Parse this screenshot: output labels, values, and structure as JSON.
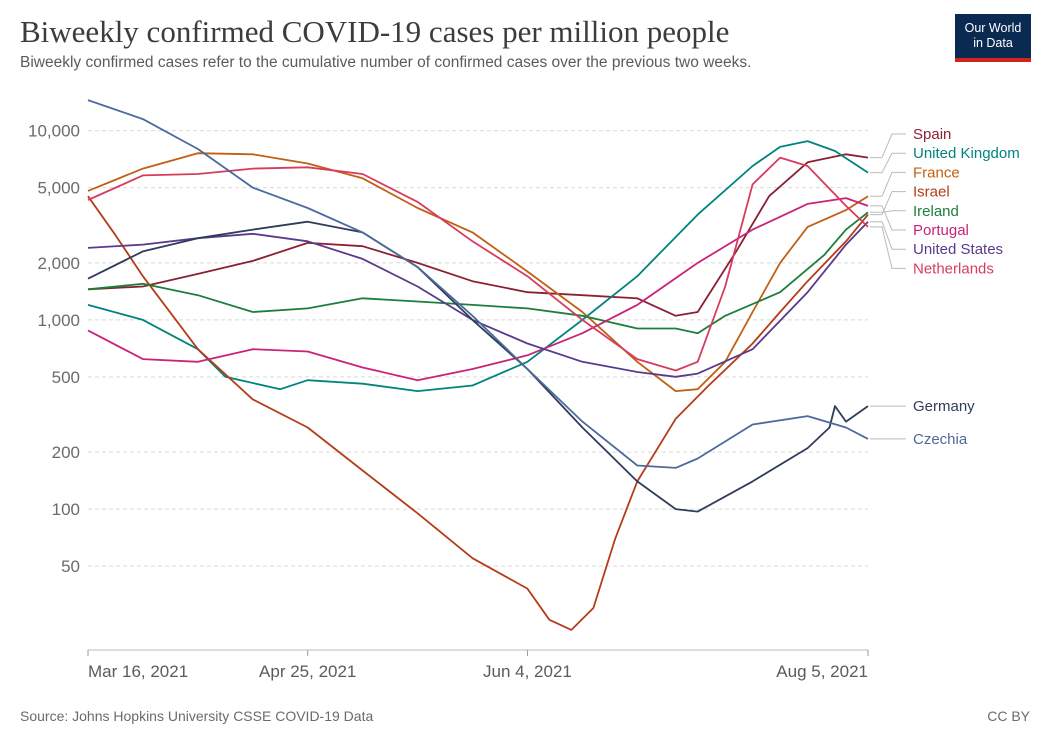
{
  "header": {
    "title": "Biweekly confirmed COVID-19 cases per million people",
    "subtitle": "Biweekly confirmed cases refer to the cumulative number of confirmed cases over the previous two weeks.",
    "logo_line1": "Our World",
    "logo_line2": "in Data"
  },
  "footer": {
    "source": "Source: Johns Hopkins University CSSE COVID-19 Data",
    "license": "CC BY"
  },
  "chart_data": {
    "type": "line",
    "title": "Biweekly confirmed COVID-19 cases per million people",
    "yscale": "log",
    "ylim": [
      18,
      16000
    ],
    "xlim": [
      "2021-03-16",
      "2021-08-05"
    ],
    "yticks": [
      50,
      100,
      200,
      500,
      1000,
      2000,
      5000,
      10000
    ],
    "ytick_labels": [
      "50",
      "100",
      "200",
      "500",
      "1,000",
      "2,000",
      "5,000",
      "10,000"
    ],
    "xticks": [
      "2021-03-16",
      "2021-04-25",
      "2021-06-04",
      "2021-08-05"
    ],
    "xtick_labels": [
      "Mar 16, 2021",
      "Apr 25, 2021",
      "Jun 4, 2021",
      "Aug 5, 2021"
    ],
    "grid": "horizontal dashed",
    "legend": "right, labels at line ends",
    "series": [
      {
        "name": "Spain",
        "color": "#8c2033",
        "points": [
          [
            "2021-03-16",
            1450
          ],
          [
            "2021-03-26",
            1500
          ],
          [
            "2021-04-05",
            1750
          ],
          [
            "2021-04-15",
            2050
          ],
          [
            "2021-04-25",
            2550
          ],
          [
            "2021-05-05",
            2450
          ],
          [
            "2021-05-15",
            2000
          ],
          [
            "2021-05-25",
            1600
          ],
          [
            "2021-06-04",
            1400
          ],
          [
            "2021-06-14",
            1350
          ],
          [
            "2021-06-24",
            1300
          ],
          [
            "2021-07-01",
            1050
          ],
          [
            "2021-07-05",
            1100
          ],
          [
            "2021-07-12",
            2300
          ],
          [
            "2021-07-18",
            4500
          ],
          [
            "2021-07-25",
            6800
          ],
          [
            "2021-08-01",
            7500
          ],
          [
            "2021-08-05",
            7200
          ]
        ]
      },
      {
        "name": "United Kingdom",
        "color": "#00847e",
        "points": [
          [
            "2021-03-16",
            1200
          ],
          [
            "2021-03-26",
            1000
          ],
          [
            "2021-04-05",
            700
          ],
          [
            "2021-04-10",
            500
          ],
          [
            "2021-04-20",
            430
          ],
          [
            "2021-04-25",
            480
          ],
          [
            "2021-05-05",
            460
          ],
          [
            "2021-05-15",
            420
          ],
          [
            "2021-05-25",
            450
          ],
          [
            "2021-06-04",
            600
          ],
          [
            "2021-06-14",
            1000
          ],
          [
            "2021-06-24",
            1700
          ],
          [
            "2021-07-05",
            3600
          ],
          [
            "2021-07-15",
            6500
          ],
          [
            "2021-07-20",
            8200
          ],
          [
            "2021-07-25",
            8800
          ],
          [
            "2021-07-30",
            7800
          ],
          [
            "2021-08-05",
            6000
          ]
        ]
      },
      {
        "name": "France",
        "color": "#c15f13",
        "points": [
          [
            "2021-03-16",
            4800
          ],
          [
            "2021-03-26",
            6300
          ],
          [
            "2021-04-05",
            7600
          ],
          [
            "2021-04-15",
            7500
          ],
          [
            "2021-04-25",
            6700
          ],
          [
            "2021-05-05",
            5600
          ],
          [
            "2021-05-15",
            3900
          ],
          [
            "2021-05-25",
            2900
          ],
          [
            "2021-06-04",
            1800
          ],
          [
            "2021-06-14",
            1100
          ],
          [
            "2021-06-24",
            600
          ],
          [
            "2021-07-01",
            420
          ],
          [
            "2021-07-05",
            430
          ],
          [
            "2021-07-10",
            600
          ],
          [
            "2021-07-15",
            1100
          ],
          [
            "2021-07-20",
            2000
          ],
          [
            "2021-07-25",
            3100
          ],
          [
            "2021-08-01",
            3800
          ],
          [
            "2021-08-05",
            4500
          ]
        ]
      },
      {
        "name": "Israel",
        "color": "#b53c19",
        "points": [
          [
            "2021-03-16",
            4500
          ],
          [
            "2021-03-21",
            2800
          ],
          [
            "2021-03-26",
            1700
          ],
          [
            "2021-04-05",
            700
          ],
          [
            "2021-04-15",
            380
          ],
          [
            "2021-04-25",
            270
          ],
          [
            "2021-05-05",
            160
          ],
          [
            "2021-05-15",
            95
          ],
          [
            "2021-05-25",
            55
          ],
          [
            "2021-06-04",
            38
          ],
          [
            "2021-06-08",
            26
          ],
          [
            "2021-06-12",
            23
          ],
          [
            "2021-06-16",
            30
          ],
          [
            "2021-06-20",
            70
          ],
          [
            "2021-06-24",
            140
          ],
          [
            "2021-07-01",
            300
          ],
          [
            "2021-07-07",
            450
          ],
          [
            "2021-07-15",
            750
          ],
          [
            "2021-07-20",
            1100
          ],
          [
            "2021-07-25",
            1600
          ],
          [
            "2021-08-01",
            2600
          ],
          [
            "2021-08-05",
            3600
          ]
        ]
      },
      {
        "name": "Ireland",
        "color": "#1b7f3c",
        "points": [
          [
            "2021-03-16",
            1450
          ],
          [
            "2021-03-26",
            1550
          ],
          [
            "2021-04-05",
            1350
          ],
          [
            "2021-04-15",
            1100
          ],
          [
            "2021-04-25",
            1150
          ],
          [
            "2021-05-05",
            1300
          ],
          [
            "2021-05-15",
            1250
          ],
          [
            "2021-05-25",
            1200
          ],
          [
            "2021-06-04",
            1150
          ],
          [
            "2021-06-14",
            1050
          ],
          [
            "2021-06-24",
            900
          ],
          [
            "2021-07-01",
            900
          ],
          [
            "2021-07-05",
            850
          ],
          [
            "2021-07-10",
            1050
          ],
          [
            "2021-07-20",
            1400
          ],
          [
            "2021-07-28",
            2200
          ],
          [
            "2021-08-01",
            3000
          ],
          [
            "2021-08-05",
            3700
          ]
        ]
      },
      {
        "name": "Portugal",
        "color": "#c9237a",
        "points": [
          [
            "2021-03-16",
            880
          ],
          [
            "2021-03-26",
            620
          ],
          [
            "2021-04-05",
            600
          ],
          [
            "2021-04-15",
            700
          ],
          [
            "2021-04-25",
            680
          ],
          [
            "2021-05-05",
            560
          ],
          [
            "2021-05-15",
            480
          ],
          [
            "2021-05-25",
            550
          ],
          [
            "2021-06-04",
            650
          ],
          [
            "2021-06-14",
            850
          ],
          [
            "2021-06-24",
            1200
          ],
          [
            "2021-07-05",
            2000
          ],
          [
            "2021-07-15",
            3000
          ],
          [
            "2021-07-25",
            4100
          ],
          [
            "2021-08-01",
            4400
          ],
          [
            "2021-08-05",
            4000
          ]
        ]
      },
      {
        "name": "United States",
        "color": "#5b3a8c",
        "points": [
          [
            "2021-03-16",
            2400
          ],
          [
            "2021-03-26",
            2500
          ],
          [
            "2021-04-05",
            2700
          ],
          [
            "2021-04-15",
            2850
          ],
          [
            "2021-04-25",
            2600
          ],
          [
            "2021-05-05",
            2100
          ],
          [
            "2021-05-15",
            1500
          ],
          [
            "2021-05-25",
            1000
          ],
          [
            "2021-06-04",
            750
          ],
          [
            "2021-06-14",
            600
          ],
          [
            "2021-06-24",
            530
          ],
          [
            "2021-07-01",
            500
          ],
          [
            "2021-07-05",
            520
          ],
          [
            "2021-07-15",
            700
          ],
          [
            "2021-07-25",
            1400
          ],
          [
            "2021-08-01",
            2500
          ],
          [
            "2021-08-05",
            3300
          ]
        ]
      },
      {
        "name": "Netherlands",
        "color": "#d73c5e",
        "points": [
          [
            "2021-03-16",
            4300
          ],
          [
            "2021-03-26",
            5800
          ],
          [
            "2021-04-05",
            5900
          ],
          [
            "2021-04-15",
            6300
          ],
          [
            "2021-04-25",
            6400
          ],
          [
            "2021-05-05",
            5900
          ],
          [
            "2021-05-15",
            4200
          ],
          [
            "2021-05-25",
            2600
          ],
          [
            "2021-06-04",
            1700
          ],
          [
            "2021-06-14",
            1000
          ],
          [
            "2021-06-24",
            620
          ],
          [
            "2021-07-01",
            540
          ],
          [
            "2021-07-05",
            600
          ],
          [
            "2021-07-10",
            1500
          ],
          [
            "2021-07-15",
            5200
          ],
          [
            "2021-07-20",
            7200
          ],
          [
            "2021-07-25",
            6500
          ],
          [
            "2021-08-01",
            4000
          ],
          [
            "2021-08-05",
            3100
          ]
        ]
      },
      {
        "name": "Germany",
        "color": "#2f3c5a",
        "points": [
          [
            "2021-03-16",
            1650
          ],
          [
            "2021-03-26",
            2300
          ],
          [
            "2021-04-05",
            2700
          ],
          [
            "2021-04-15",
            3000
          ],
          [
            "2021-04-25",
            3300
          ],
          [
            "2021-05-05",
            2900
          ],
          [
            "2021-05-15",
            1900
          ],
          [
            "2021-05-25",
            1000
          ],
          [
            "2021-06-04",
            550
          ],
          [
            "2021-06-14",
            270
          ],
          [
            "2021-06-24",
            140
          ],
          [
            "2021-07-01",
            100
          ],
          [
            "2021-07-05",
            97
          ],
          [
            "2021-07-15",
            140
          ],
          [
            "2021-07-25",
            210
          ],
          [
            "2021-07-29",
            270
          ],
          [
            "2021-07-30",
            350
          ],
          [
            "2021-08-01",
            290
          ],
          [
            "2021-08-05",
            350
          ]
        ]
      },
      {
        "name": "Czechia",
        "color": "#4c6a9c",
        "points": [
          [
            "2021-03-16",
            14500
          ],
          [
            "2021-03-26",
            11500
          ],
          [
            "2021-04-05",
            8000
          ],
          [
            "2021-04-15",
            5000
          ],
          [
            "2021-04-25",
            3900
          ],
          [
            "2021-05-05",
            2900
          ],
          [
            "2021-05-15",
            1900
          ],
          [
            "2021-05-25",
            1050
          ],
          [
            "2021-06-04",
            550
          ],
          [
            "2021-06-14",
            290
          ],
          [
            "2021-06-24",
            170
          ],
          [
            "2021-07-01",
            165
          ],
          [
            "2021-07-05",
            185
          ],
          [
            "2021-07-15",
            280
          ],
          [
            "2021-07-25",
            310
          ],
          [
            "2021-08-01",
            270
          ],
          [
            "2021-08-05",
            235
          ]
        ]
      }
    ],
    "labels": [
      {
        "name": "Spain",
        "color": "#8c2033"
      },
      {
        "name": "United Kingdom",
        "color": "#00847e"
      },
      {
        "name": "France",
        "color": "#c15f13"
      },
      {
        "name": "Israel",
        "color": "#b53c19"
      },
      {
        "name": "Ireland",
        "color": "#1b7f3c"
      },
      {
        "name": "Portugal",
        "color": "#c9237a"
      },
      {
        "name": "United States",
        "color": "#5b3a8c"
      },
      {
        "name": "Netherlands",
        "color": "#d73c5e"
      },
      {
        "name": "Germany",
        "color": "#2f3c5a"
      },
      {
        "name": "Czechia",
        "color": "#4c6a9c"
      }
    ]
  }
}
